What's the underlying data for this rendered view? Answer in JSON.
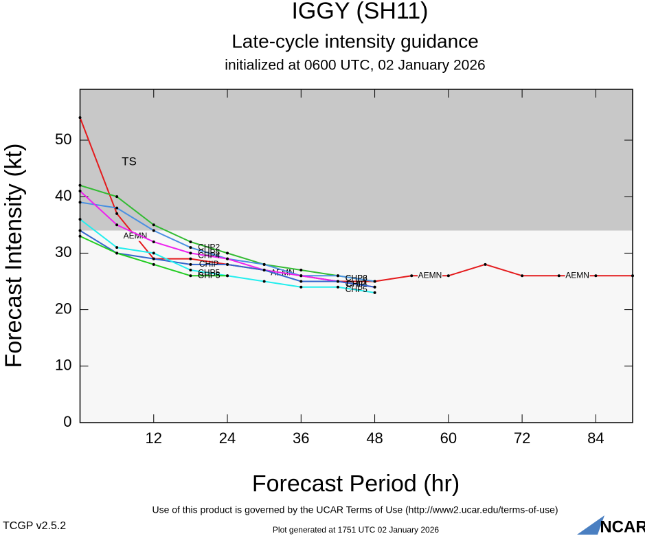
{
  "chart_data": {
    "type": "line",
    "title": "IGGY (SH11)",
    "subtitle": "Late-cycle intensity guidance",
    "initialized": "initialized at 0600 UTC, 02 January 2026",
    "x_label": "Forecast Period (hr)",
    "y_label": "Forecast Intensity (kt)",
    "ts_band": {
      "label": "TS",
      "from": 34,
      "color": "#c8c8c8"
    },
    "x": [
      0,
      6,
      12,
      18,
      24,
      30,
      36,
      42,
      48,
      54,
      60,
      66,
      72,
      78,
      84,
      90
    ],
    "xlim": [
      0,
      90
    ],
    "xticks": [
      12,
      24,
      36,
      48,
      60,
      72,
      84
    ],
    "ylim": [
      0,
      59
    ],
    "yticks": [
      0,
      10,
      20,
      30,
      40,
      50
    ],
    "series": [
      {
        "name": "AEMN",
        "color": "#e41a1c",
        "values": [
          54,
          37,
          29,
          29,
          28,
          27,
          26,
          25,
          25,
          26,
          26,
          28,
          26,
          26,
          26,
          26
        ]
      },
      {
        "name": "CHP2",
        "color": "#33bb33",
        "values": [
          42,
          40,
          35,
          32,
          30,
          28,
          27,
          26,
          25,
          null,
          null,
          null,
          null,
          null,
          null,
          null
        ]
      },
      {
        "name": "CHP6",
        "color": "#4a90e2",
        "values": [
          39,
          38,
          34,
          31,
          29,
          28,
          26,
          26,
          25,
          null,
          null,
          null,
          null,
          null,
          null,
          null
        ]
      },
      {
        "name": "CHP4",
        "color": "#ee22ee",
        "values": [
          41,
          35,
          32,
          30,
          29,
          27,
          26,
          25,
          24,
          null,
          null,
          null,
          null,
          null,
          null,
          null
        ]
      },
      {
        "name": "CHIP",
        "color": "#3366cc",
        "values": [
          34,
          30,
          29,
          28,
          28,
          27,
          25,
          25,
          24,
          null,
          null,
          null,
          null,
          null,
          null,
          null
        ]
      },
      {
        "name": "CHP5",
        "color": "#22eeee",
        "values": [
          36,
          31,
          30,
          27,
          26,
          25,
          24,
          24,
          23,
          null,
          null,
          null,
          null,
          null,
          null,
          null
        ]
      },
      {
        "name": "GHP5",
        "color": "#22cc22",
        "values": [
          33,
          30,
          28,
          26,
          26,
          null,
          null,
          null,
          null,
          null,
          null,
          null,
          null,
          null,
          null,
          null
        ]
      }
    ],
    "footer": {
      "terms": "Use of this product is governed by the UCAR Terms of Use (http://www2.ucar.edu/terms-of-use)",
      "version": "TCGP v2.5.2",
      "generated": "Plot generated at 1751 UTC   02 January 2026",
      "logo": "NCAR"
    }
  }
}
